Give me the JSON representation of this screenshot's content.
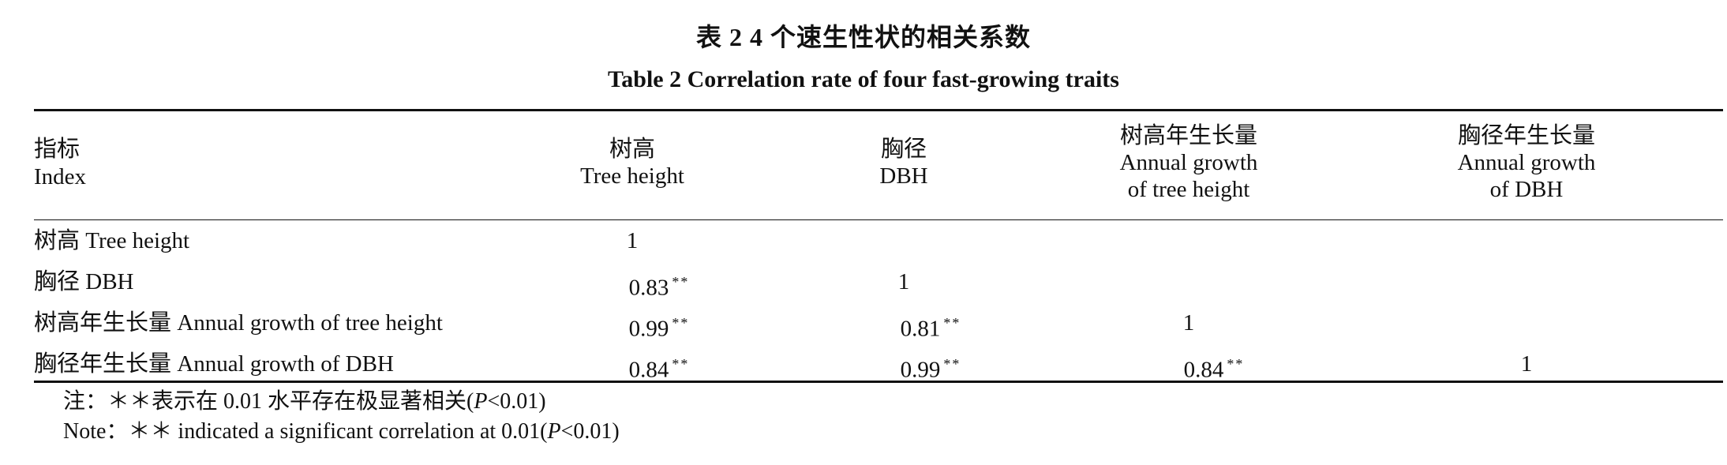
{
  "title": {
    "zh": "表 2   4 个速生性状的相关系数",
    "en": "Table 2   Correlation rate of four fast-growing traits"
  },
  "table": {
    "columns": [
      {
        "zh": "指标",
        "en1": "Index",
        "en2": ""
      },
      {
        "zh": "树高",
        "en1": "Tree height",
        "en2": ""
      },
      {
        "zh": "胸径",
        "en1": "DBH",
        "en2": ""
      },
      {
        "zh": "树高年生长量",
        "en1": "Annual growth",
        "en2": "of tree height"
      },
      {
        "zh": "胸径年生长量",
        "en1": "Annual growth",
        "en2": "of DBH"
      }
    ],
    "rows": [
      {
        "label": "树高 Tree height",
        "c1": "1",
        "c1s": "",
        "c2": "",
        "c2s": "",
        "c3": "",
        "c3s": "",
        "c4": ""
      },
      {
        "label": "胸径 DBH",
        "c1": "0.83",
        "c1s": "**",
        "c2": "1",
        "c2s": "",
        "c3": "",
        "c3s": "",
        "c4": ""
      },
      {
        "label": "树高年生长量 Annual growth of tree height",
        "c1": "0.99",
        "c1s": "**",
        "c2": "0.81",
        "c2s": "**",
        "c3": "1",
        "c3s": "",
        "c4": ""
      },
      {
        "label": "胸径年生长量 Annual growth of DBH",
        "c1": "0.84",
        "c1s": "**",
        "c2": "0.99",
        "c2s": "**",
        "c3": "0.84",
        "c3s": "**",
        "c4": "1"
      }
    ]
  },
  "notes": {
    "zh_prefix": "注：＊＊表示在 0.01 水平存在极显著相关(",
    "zh_p": "P",
    "zh_suffix": "<0.01)",
    "en_prefix": "Note：＊＊ indicated a significant correlation at 0.01(",
    "en_p": "P",
    "en_suffix": "<0.01)"
  }
}
